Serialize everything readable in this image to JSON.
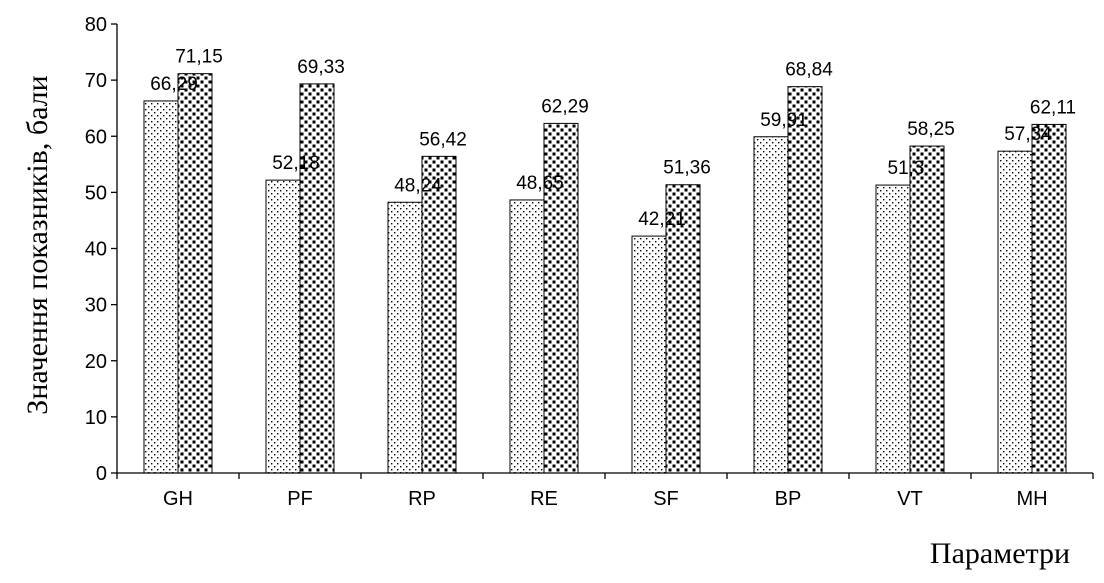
{
  "chart_data": {
    "type": "bar",
    "categories": [
      "GH",
      "PF",
      "RP",
      "RE",
      "SF",
      "BP",
      "VT",
      "MH"
    ],
    "series": [
      {
        "values": [
          66.29,
          52.18,
          48.24,
          48.65,
          42.21,
          59.91,
          51.3,
          57.34
        ],
        "labels": [
          "66,29",
          "52,18",
          "48,24",
          "48,65",
          "42,21",
          "59,91",
          "51,3",
          "57,34"
        ],
        "pattern": "fine-dots"
      },
      {
        "values": [
          71.15,
          69.33,
          56.42,
          62.29,
          51.36,
          68.84,
          58.25,
          62.11
        ],
        "labels": [
          "71,15",
          "69,33",
          "56,42",
          "62,29",
          "51,36",
          "68,84",
          "58,25",
          "62,11"
        ],
        "pattern": "coarse-dots"
      }
    ],
    "ylim": [
      0,
      80
    ],
    "yticks": [
      0,
      10,
      20,
      30,
      40,
      50,
      60,
      70,
      80
    ],
    "xlabel": "Параметри",
    "ylabel": "Значення показників, бали",
    "grid": false,
    "legend": "none"
  }
}
